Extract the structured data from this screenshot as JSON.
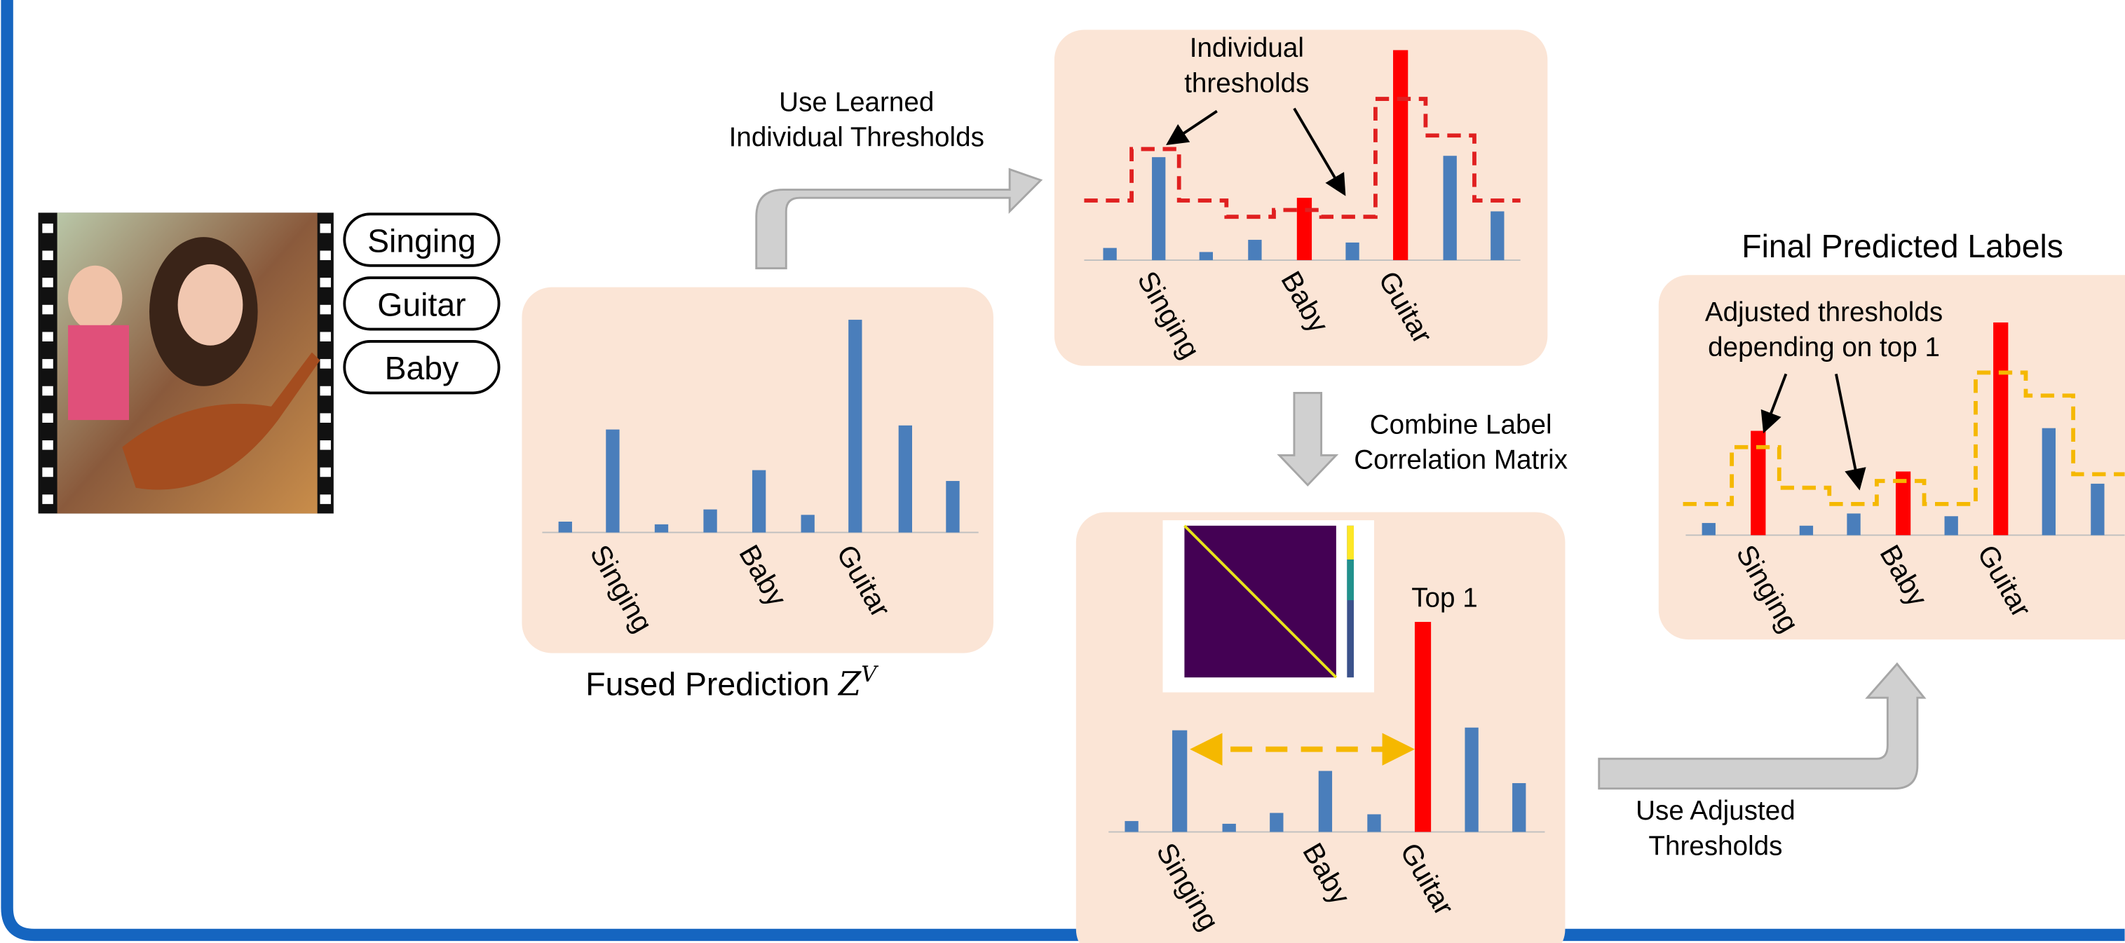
{
  "video_tags": [
    "Singing",
    "Guitar",
    "Baby"
  ],
  "panels": {
    "fused": {
      "caption": "Fused Prediction",
      "caption_symbol": "Z",
      "caption_superscript": "V",
      "labels": [
        "Singing",
        "Baby",
        "Guitar"
      ]
    },
    "individual": {
      "annotation_lines": [
        "Individual",
        "thresholds"
      ],
      "labels": [
        "Singing",
        "Baby",
        "Guitar"
      ]
    },
    "combined": {
      "annotation": "Top 1",
      "labels": [
        "Singing",
        "Baby",
        "Guitar"
      ]
    },
    "final": {
      "title": "Final Predicted Labels",
      "annotation_lines": [
        "Adjusted thresholds",
        "depending on top 1"
      ],
      "labels": [
        "Singing",
        "Baby",
        "Guitar"
      ]
    }
  },
  "arrows": {
    "learned": [
      "Use Learned",
      "Individual Thresholds"
    ],
    "combine": [
      "Combine Label",
      "Correlation Matrix"
    ],
    "adjusted": [
      "Use Adjusted",
      "Thresholds"
    ]
  }
}
